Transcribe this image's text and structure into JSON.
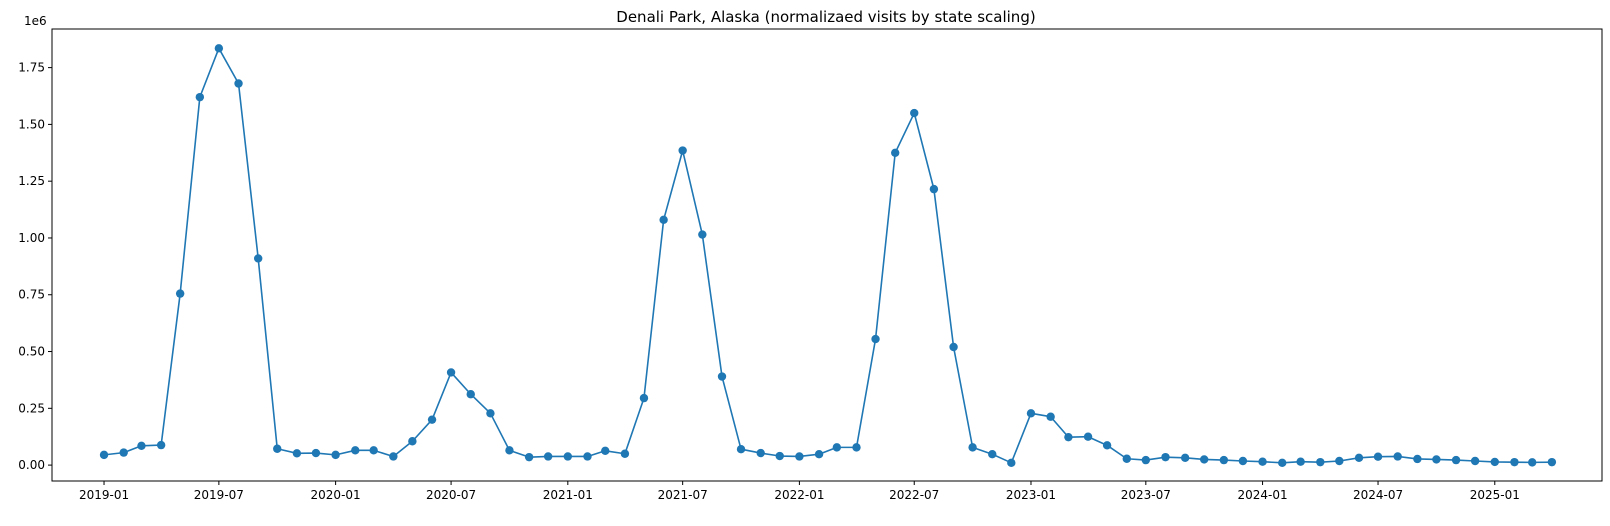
{
  "chart_data": {
    "type": "line",
    "title": "Denali Park, Alaska (normalizaed visits by state scaling)",
    "xlabel": "",
    "ylabel": "",
    "y_offset_text": "1e6",
    "marker": "circle",
    "color": "#1f77b4",
    "grid": false,
    "legend": "none",
    "xlim": [
      "2018-10-11",
      "2025-06-19"
    ],
    "ylim": [
      -70000,
      1920000
    ],
    "x_ticks": [
      "2019-01",
      "2019-07",
      "2020-01",
      "2020-07",
      "2021-01",
      "2021-07",
      "2022-01",
      "2022-07",
      "2023-01",
      "2023-07",
      "2024-01",
      "2024-07",
      "2025-01"
    ],
    "y_ticks": [
      "0.00",
      "0.25",
      "0.50",
      "0.75",
      "1.00",
      "1.25",
      "1.50",
      "1.75"
    ],
    "series": [
      {
        "x": [
          "2019-01-01",
          "2019-02-01",
          "2019-03-01",
          "2019-04-01",
          "2019-05-01",
          "2019-06-01",
          "2019-07-01",
          "2019-08-01",
          "2019-09-01",
          "2019-10-01",
          "2019-11-01",
          "2019-12-01",
          "2020-01-01",
          "2020-02-01",
          "2020-03-01",
          "2020-04-01",
          "2020-05-01",
          "2020-06-01",
          "2020-07-01",
          "2020-08-01",
          "2020-09-01",
          "2020-10-01",
          "2020-11-01",
          "2020-12-01",
          "2021-01-01",
          "2021-02-01",
          "2021-03-01",
          "2021-04-01",
          "2021-05-01",
          "2021-06-01",
          "2021-07-01",
          "2021-08-01",
          "2021-09-01",
          "2021-10-01",
          "2021-11-01",
          "2021-12-01",
          "2022-01-01",
          "2022-02-01",
          "2022-03-01",
          "2022-04-01",
          "2022-05-01",
          "2022-06-01",
          "2022-07-01",
          "2022-08-01",
          "2022-09-01",
          "2022-10-01",
          "2022-11-01",
          "2022-12-01",
          "2023-01-01",
          "2023-02-01",
          "2023-03-01",
          "2023-04-01",
          "2023-05-01",
          "2023-06-01",
          "2023-07-01",
          "2023-08-01",
          "2023-09-01",
          "2023-10-01",
          "2023-11-01",
          "2023-12-01",
          "2024-01-01",
          "2024-02-01",
          "2024-03-01",
          "2024-04-01",
          "2024-05-01",
          "2024-06-01",
          "2024-07-01",
          "2024-08-01",
          "2024-09-01",
          "2024-10-01",
          "2024-11-01",
          "2024-12-01",
          "2025-01-01",
          "2025-02-01",
          "2025-03-01",
          "2025-04-01"
        ],
        "y": [
          45000,
          55000,
          85000,
          88000,
          755000,
          1620000,
          1835000,
          1680000,
          910000,
          72000,
          52000,
          53000,
          45000,
          65000,
          65000,
          38000,
          105000,
          200000,
          408000,
          312000,
          228000,
          65000,
          35000,
          38000,
          38000,
          38000,
          63000,
          50000,
          295000,
          1080000,
          1385000,
          1015000,
          390000,
          70000,
          53000,
          40000,
          38000,
          48000,
          78000,
          78000,
          555000,
          1375000,
          1550000,
          1215000,
          520000,
          78000,
          48000,
          10000,
          228000,
          213000,
          123000,
          125000,
          87000,
          28000,
          22000,
          35000,
          32000,
          25000,
          22000,
          18000,
          15000,
          10000,
          15000,
          13000,
          18000,
          32000,
          37000,
          38000,
          27000,
          25000,
          22000,
          18000,
          14000,
          13000,
          12000,
          13000
        ]
      }
    ]
  }
}
